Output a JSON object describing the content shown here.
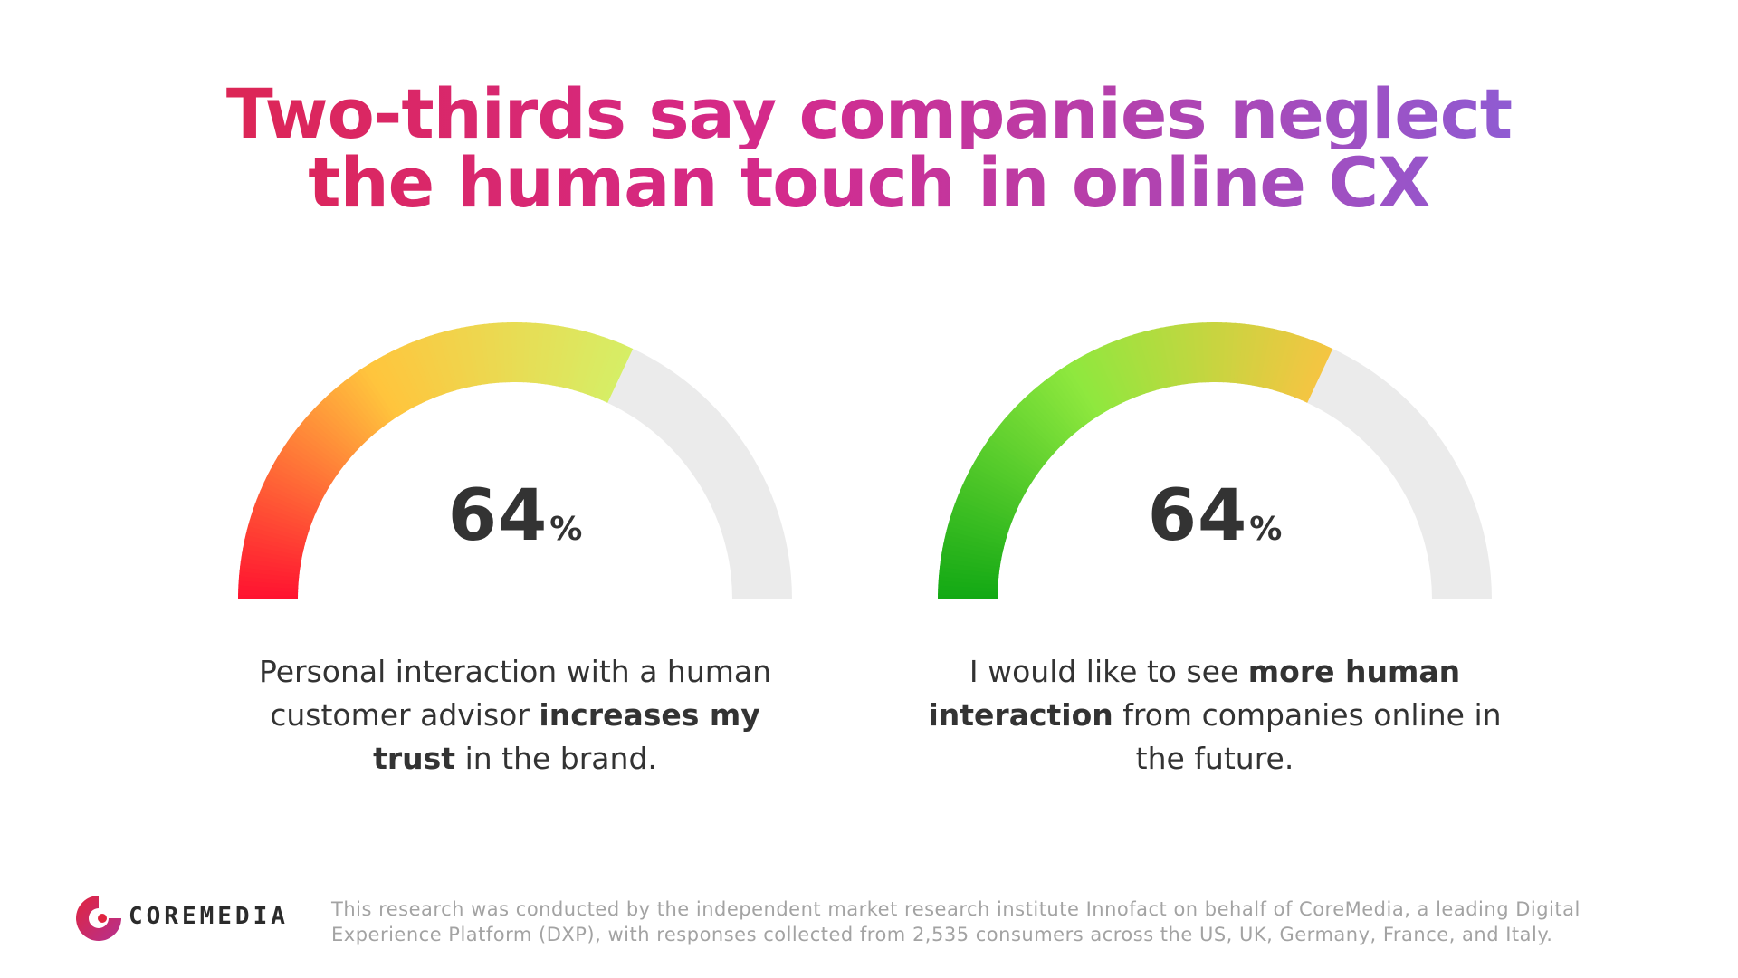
{
  "title": {
    "line1": "Two-thirds say companies neglect",
    "line2": "the human touch in online CX"
  },
  "chart_data": [
    {
      "type": "gauge",
      "value": 64,
      "max": 100,
      "unit": "%",
      "caption": {
        "part1": "Personal interaction with a human customer advisor ",
        "bold": "increases my trust",
        "part2": " in the brand."
      },
      "colors": {
        "start": "#ff1230",
        "mid": "#ffc53d",
        "end": "#d6ee66",
        "track": "#ebebeb"
      }
    },
    {
      "type": "gauge",
      "value": 64,
      "max": 100,
      "unit": "%",
      "caption": {
        "part1": "I would like to see ",
        "bold": "more human interaction",
        "part2": " from companies online in the future."
      },
      "colors": {
        "start": "#12a814",
        "mid": "#8ee83e",
        "end": "#f5c542",
        "track": "#ebebeb"
      }
    }
  ],
  "footer": {
    "brand": "COREMEDIA",
    "note": "This research was conducted by the independent market research institute Innofact on behalf of CoreMedia, a leading Digital Experience Platform (DXP), with responses collected from 2,535 consumers across the US, UK, Germany, France, and Italy."
  },
  "icons": {
    "logo": "coremedia-logo-icon"
  },
  "brand_colors": {
    "logo_gradient_start": "#e0243f",
    "logo_gradient_end": "#b5318f",
    "text": "#333333"
  }
}
